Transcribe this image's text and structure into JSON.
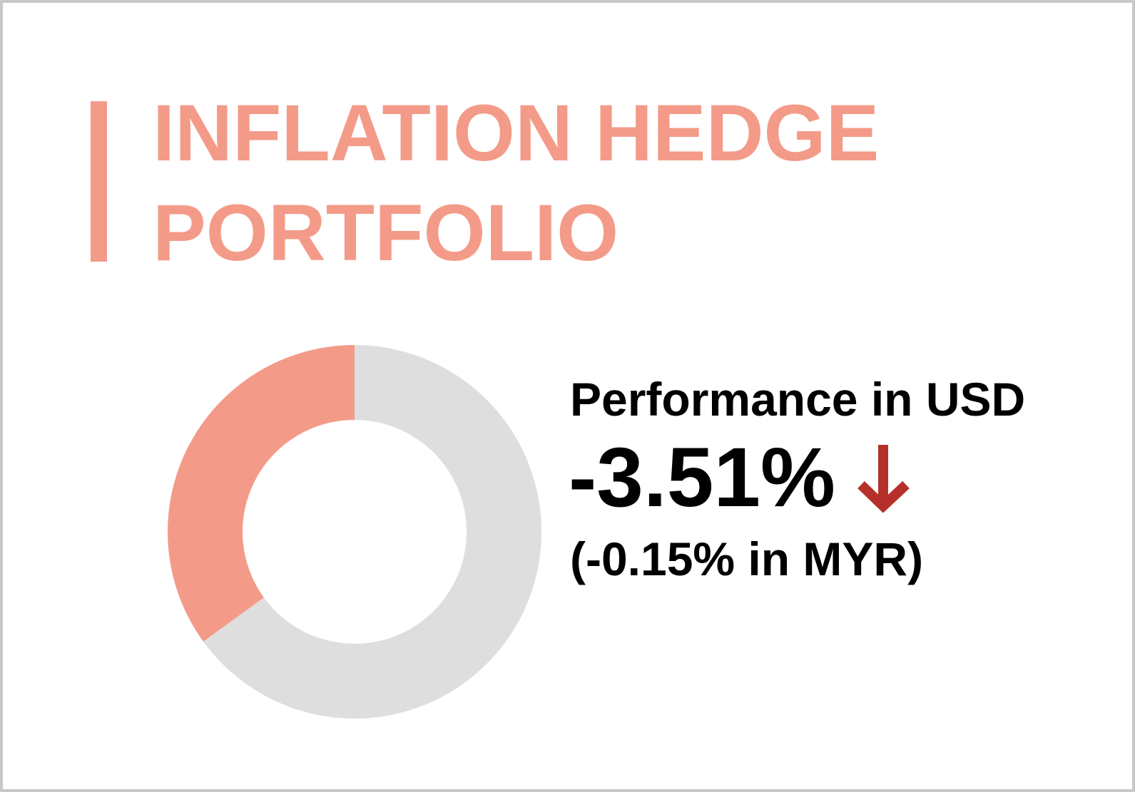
{
  "chart_data": {
    "type": "donut",
    "title": [
      "INFLATION HEDGE",
      "PORTFOLIO"
    ],
    "title_color": "#f39b88",
    "values": [
      35,
      65
    ],
    "colors": [
      "#f39b88",
      "#dedede"
    ],
    "performance": {
      "label": "Performance in USD",
      "value": -3.51,
      "value_label": "-3.51%",
      "note": "(-0.15% in MYR)"
    }
  }
}
